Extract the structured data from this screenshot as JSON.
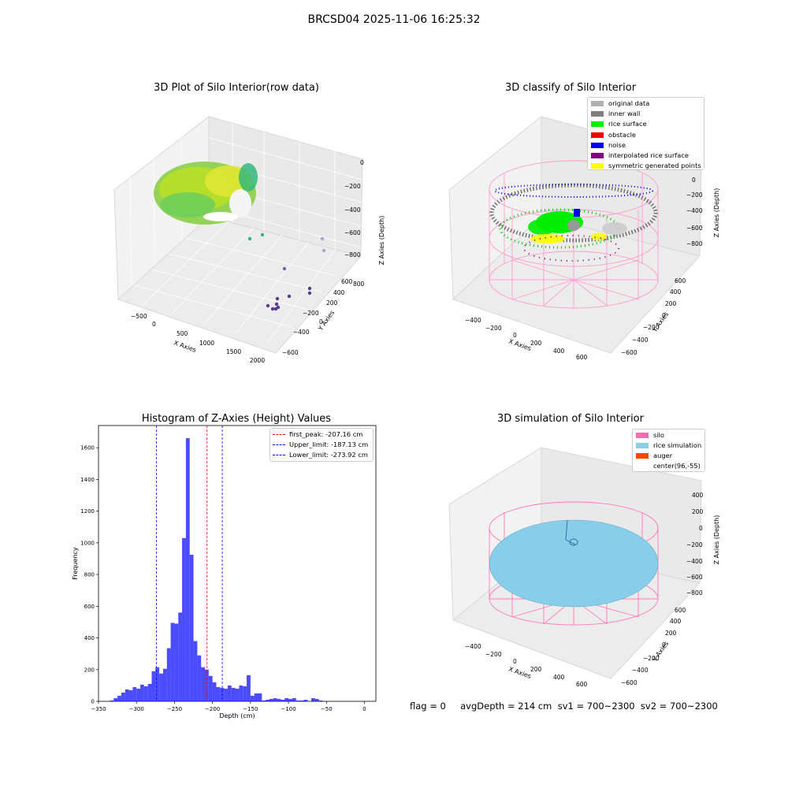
{
  "figure": {
    "suptitle": "BRCSD04 2025-11-06 16:25:32",
    "status_text": "flag = 0     avgDepth = 214 cm  sv1 = 700~2300  sv2 = 700~2300"
  },
  "panels": {
    "raw": {
      "title": "3D Plot of Silo Interior(row data)",
      "xlabel": "X Axies",
      "ylabel": "Y Axies",
      "zlabel": "Z Axies (Depth)",
      "xticks": [
        "−500",
        "0",
        "500",
        "1000",
        "1500",
        "2000"
      ],
      "yticks": [
        "−600",
        "−400",
        "−200",
        "0",
        "200",
        "400",
        "600",
        "800"
      ],
      "zticks": [
        "0",
        "−200",
        "−400",
        "−600",
        "−800"
      ]
    },
    "classify": {
      "title": "3D classify of Silo Interior",
      "xlabel": "X Axies",
      "ylabel": "Y Axies",
      "zlabel": "Z Axies (Depth)",
      "xticks": [
        "−400",
        "−200",
        "0",
        "200",
        "400",
        "600"
      ],
      "yticks": [
        "−600",
        "−400",
        "−200",
        "0",
        "200",
        "400",
        "600"
      ],
      "zticks": [
        "200",
        "0",
        "−200",
        "−400",
        "−600",
        "−800"
      ],
      "legend": [
        {
          "label": "original data",
          "color": "#b0b0b0"
        },
        {
          "label": "inner wall",
          "color": "#808080"
        },
        {
          "label": "rice surface",
          "color": "#00ee00"
        },
        {
          "label": "obstacle",
          "color": "#ee0000"
        },
        {
          "label": "noise",
          "color": "#0000ee"
        },
        {
          "label": "interpolated rice surface",
          "color": "#800080"
        },
        {
          "label": "symmetric generated points",
          "color": "#ffff00"
        }
      ]
    },
    "simulation": {
      "title": "3D simulation of Silo Interior",
      "xlabel": "X Axies",
      "ylabel": "Y Axies",
      "zlabel": "Z Axies (Depth)",
      "xticks": [
        "−400",
        "−200",
        "0",
        "200",
        "400",
        "600"
      ],
      "yticks": [
        "−600",
        "−400",
        "−200",
        "0",
        "200",
        "400",
        "600"
      ],
      "zticks": [
        "400",
        "200",
        "0",
        "−200",
        "−400",
        "−600",
        "−800"
      ],
      "legend": [
        {
          "label": "silo",
          "color": "#ff69b4"
        },
        {
          "label": "rice simulation",
          "color": "#87ceeb"
        },
        {
          "label": "auger",
          "color": "#ff4500"
        },
        {
          "label": "center(96,-55)",
          "color": "#ffffff"
        }
      ]
    }
  },
  "chart_data": {
    "type": "bar",
    "title": "Histogram of Z-Axies (Height) Values",
    "xlabel": "Depth (cm)",
    "ylabel": "Frequency",
    "xlim": [
      -350,
      15
    ],
    "ylim": [
      0,
      1740
    ],
    "xticks": [
      -350,
      -300,
      -250,
      -200,
      -150,
      -100,
      -50,
      0
    ],
    "yticks": [
      0,
      200,
      400,
      600,
      800,
      1000,
      1200,
      1400,
      1600
    ],
    "bar_color": "#0000ff",
    "bin_width": 5,
    "bins_start": [
      -335,
      -330,
      -325,
      -320,
      -315,
      -310,
      -305,
      -300,
      -295,
      -290,
      -285,
      -280,
      -275,
      -270,
      -265,
      -260,
      -255,
      -250,
      -245,
      -240,
      -235,
      -230,
      -225,
      -220,
      -215,
      -210,
      -205,
      -200,
      -195,
      -190,
      -185,
      -180,
      -175,
      -170,
      -165,
      -160,
      -155,
      -150,
      -145,
      -140,
      -135,
      -130,
      -125,
      -120,
      -115,
      -110,
      -105,
      -100,
      -95,
      -90,
      -85,
      -80,
      -75,
      -70,
      -65,
      -60,
      -55,
      -50,
      -45,
      -40,
      -35,
      -30,
      -25,
      -20,
      -15,
      -10,
      -5,
      0
    ],
    "values": [
      5,
      20,
      35,
      55,
      75,
      70,
      90,
      80,
      105,
      95,
      110,
      190,
      215,
      175,
      205,
      335,
      495,
      490,
      560,
      1030,
      1660,
      925,
      380,
      290,
      215,
      200,
      160,
      120,
      90,
      85,
      80,
      100,
      85,
      80,
      100,
      95,
      165,
      35,
      50,
      50,
      5,
      10,
      15,
      20,
      15,
      10,
      20,
      15,
      20,
      5,
      5,
      10,
      0,
      20,
      15,
      5,
      0,
      0,
      0,
      0,
      0,
      0,
      0,
      0,
      0,
      0,
      0,
      0
    ],
    "vlines": [
      {
        "label": "first_peak: -207.16 cm",
        "x": -207.16,
        "color": "#ff0000"
      },
      {
        "label": "Upper_limit: -187.13 cm",
        "x": -187.13,
        "color": "#0000ff"
      },
      {
        "label": "Lower_limit: -273.92 cm",
        "x": -273.92,
        "color": "#0000ff"
      }
    ]
  }
}
